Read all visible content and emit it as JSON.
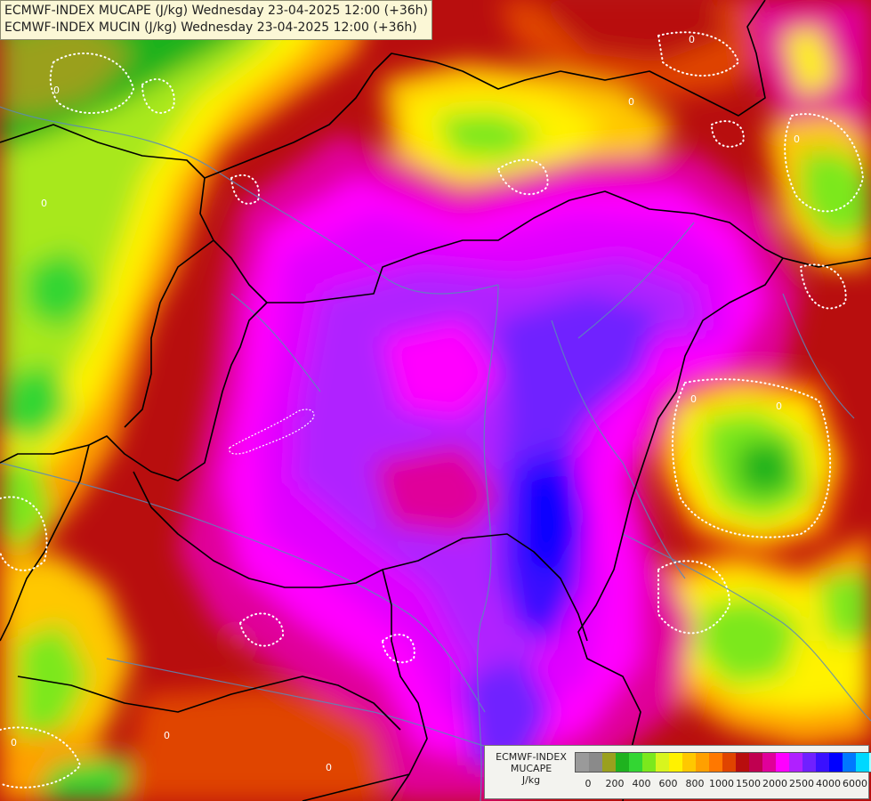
{
  "title": {
    "line1": "ECMWF-INDEX MUCAPE (J/kg) Wednesday 23-04-2025 12:00 (+36h)",
    "line2": "ECMWF-INDEX MUCIN (J/kg) Wednesday 23-04-2025 12:00 (+36h)"
  },
  "legend": {
    "model": "ECMWF-INDEX",
    "param": "MUCAPE",
    "unit": "J/kg",
    "ticks": [
      "0",
      "200",
      "400",
      "600",
      "800",
      "1000",
      "1500",
      "2000",
      "2500",
      "4000",
      "6000"
    ],
    "colors": [
      "#9a9a9a",
      "#8a8a8a",
      "#9aa01e",
      "#1fb21f",
      "#33d633",
      "#7be81d",
      "#d8f51e",
      "#fff200",
      "#ffc800",
      "#ffa000",
      "#ff7800",
      "#e04400",
      "#b80e0e",
      "#c00050",
      "#e0009a",
      "#ff00ff",
      "#b020ff",
      "#7020ff",
      "#3a10ff",
      "#0000ff",
      "#0078ff",
      "#00d8ff",
      "#a8ffff",
      "#ffffff"
    ]
  },
  "map": {
    "isoline_label": "0",
    "colors": {
      "border": "#000000",
      "river": "#5a8ab8",
      "isoline": "#ffffff"
    }
  }
}
